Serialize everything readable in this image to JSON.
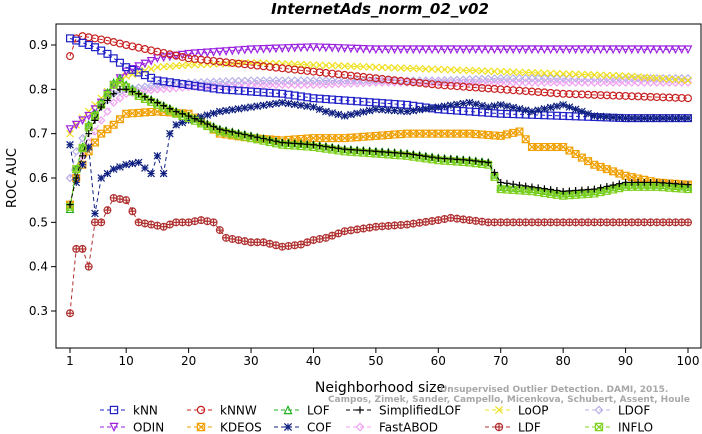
{
  "chart_data": {
    "type": "line",
    "title": "InternetAds_norm_02_v02",
    "xlabel": "Neighborhood size",
    "ylabel": "ROC AUC",
    "xlim": [
      1,
      100
    ],
    "ylim": [
      0.28,
      0.93
    ],
    "x_ticks": [
      1,
      10,
      20,
      30,
      40,
      50,
      60,
      70,
      80,
      90,
      100
    ],
    "y_ticks": [
      0.3,
      0.4,
      0.5,
      0.6,
      0.7,
      0.8,
      0.9
    ],
    "grid": false,
    "legend_placement": "bottom",
    "series": [
      {
        "name": "kNN",
        "color": "#2020c8",
        "marker": "square",
        "dashed": true,
        "x": [
          1,
          2,
          3,
          5,
          7,
          10,
          15,
          20,
          25,
          30,
          35,
          40,
          45,
          50,
          55,
          60,
          65,
          70,
          80,
          90,
          100
        ],
        "y": [
          0.915,
          0.91,
          0.905,
          0.895,
          0.88,
          0.85,
          0.82,
          0.81,
          0.8,
          0.795,
          0.79,
          0.78,
          0.775,
          0.77,
          0.765,
          0.755,
          0.75,
          0.745,
          0.74,
          0.735,
          0.735
        ]
      },
      {
        "name": "kNNW",
        "color": "#c82020",
        "marker": "circle",
        "dashed": true,
        "x": [
          1,
          2,
          3,
          5,
          7,
          10,
          15,
          20,
          30,
          40,
          50,
          60,
          70,
          80,
          90,
          100
        ],
        "y": [
          0.875,
          0.915,
          0.92,
          0.915,
          0.91,
          0.9,
          0.885,
          0.87,
          0.855,
          0.84,
          0.825,
          0.81,
          0.8,
          0.79,
          0.785,
          0.78
        ]
      },
      {
        "name": "LOF",
        "color": "#20b020",
        "marker": "triangle",
        "dashed": true,
        "x": [
          1,
          2,
          4,
          6,
          8,
          9,
          10,
          12,
          15,
          18,
          20,
          25,
          30,
          35,
          40,
          45,
          50,
          55,
          60,
          65,
          68,
          70,
          75,
          80,
          85,
          90,
          95,
          100
        ],
        "y": [
          0.53,
          0.62,
          0.72,
          0.77,
          0.815,
          0.825,
          0.81,
          0.79,
          0.77,
          0.75,
          0.74,
          0.71,
          0.695,
          0.68,
          0.675,
          0.665,
          0.66,
          0.655,
          0.645,
          0.64,
          0.635,
          0.58,
          0.575,
          0.565,
          0.57,
          0.585,
          0.585,
          0.58
        ]
      },
      {
        "name": "SimplifiedLOF",
        "color": "#000000",
        "marker": "plus",
        "dashed": true,
        "x": [
          1,
          2,
          4,
          6,
          8,
          9,
          10,
          12,
          15,
          18,
          20,
          25,
          30,
          35,
          40,
          45,
          50,
          55,
          60,
          65,
          68,
          70,
          75,
          80,
          85,
          90,
          95,
          100
        ],
        "y": [
          0.54,
          0.6,
          0.7,
          0.76,
          0.79,
          0.8,
          0.8,
          0.79,
          0.77,
          0.75,
          0.74,
          0.71,
          0.695,
          0.68,
          0.675,
          0.665,
          0.66,
          0.655,
          0.645,
          0.64,
          0.635,
          0.59,
          0.58,
          0.57,
          0.575,
          0.59,
          0.59,
          0.585
        ]
      },
      {
        "name": "LoOP",
        "color": "#f0e020",
        "marker": "cross",
        "dashed": true,
        "x": [
          1,
          2,
          4,
          6,
          8,
          10,
          15,
          20,
          30,
          40,
          50,
          60,
          70,
          80,
          90,
          100
        ],
        "y": [
          0.7,
          0.72,
          0.75,
          0.78,
          0.81,
          0.83,
          0.85,
          0.855,
          0.86,
          0.855,
          0.85,
          0.845,
          0.84,
          0.835,
          0.83,
          0.82
        ]
      },
      {
        "name": "LDOF",
        "color": "#b8b0e8",
        "marker": "diamond",
        "dashed": true,
        "x": [
          1,
          2,
          4,
          6,
          8,
          10,
          15,
          20,
          30,
          40,
          50,
          60,
          70,
          80,
          90,
          100
        ],
        "y": [
          0.6,
          0.66,
          0.72,
          0.76,
          0.79,
          0.8,
          0.81,
          0.815,
          0.82,
          0.82,
          0.82,
          0.82,
          0.825,
          0.825,
          0.825,
          0.825
        ]
      },
      {
        "name": "ODIN",
        "color": "#9a20e0",
        "marker": "triangle-down",
        "dashed": true,
        "x": [
          1,
          2,
          4,
          6,
          8,
          10,
          15,
          20,
          25,
          30,
          40,
          50,
          60,
          70,
          80,
          90,
          100
        ],
        "y": [
          0.71,
          0.72,
          0.74,
          0.77,
          0.81,
          0.84,
          0.87,
          0.88,
          0.885,
          0.89,
          0.895,
          0.89,
          0.89,
          0.89,
          0.89,
          0.89,
          0.89
        ]
      },
      {
        "name": "KDEOS",
        "color": "#f0a000",
        "marker": "square-x",
        "dashed": true,
        "x": [
          1,
          2,
          4,
          6,
          8,
          10,
          15,
          20,
          25,
          30,
          35,
          40,
          45,
          50,
          55,
          60,
          65,
          70,
          73,
          75,
          80,
          85,
          90,
          95,
          100
        ],
        "y": [
          0.54,
          0.6,
          0.66,
          0.7,
          0.72,
          0.745,
          0.75,
          0.745,
          0.7,
          0.69,
          0.685,
          0.69,
          0.69,
          0.695,
          0.7,
          0.7,
          0.7,
          0.695,
          0.705,
          0.67,
          0.67,
          0.63,
          0.605,
          0.59,
          0.585
        ]
      },
      {
        "name": "COF",
        "color": "#102080",
        "marker": "star",
        "dashed": true,
        "x": [
          1,
          2,
          3,
          4,
          5,
          6,
          8,
          10,
          12,
          14,
          15,
          16,
          17,
          18,
          20,
          25,
          30,
          35,
          40,
          42,
          45,
          50,
          55,
          60,
          65,
          68,
          70,
          75,
          80,
          85,
          90,
          100
        ],
        "y": [
          0.675,
          0.59,
          0.63,
          0.67,
          0.52,
          0.6,
          0.62,
          0.63,
          0.635,
          0.61,
          0.65,
          0.61,
          0.7,
          0.72,
          0.73,
          0.75,
          0.76,
          0.77,
          0.76,
          0.75,
          0.74,
          0.755,
          0.75,
          0.76,
          0.77,
          0.76,
          0.765,
          0.75,
          0.765,
          0.74,
          0.735,
          0.735
        ]
      },
      {
        "name": "FastABOD",
        "color": "#f0a0f0",
        "marker": "diamond",
        "dashed": true,
        "x": [
          1,
          2,
          4,
          6,
          8,
          10,
          15,
          20,
          30,
          40,
          50,
          60,
          70,
          80,
          90,
          100
        ],
        "y": [
          0.6,
          0.62,
          0.68,
          0.73,
          0.77,
          0.79,
          0.8,
          0.805,
          0.81,
          0.81,
          0.815,
          0.815,
          0.815,
          0.815,
          0.815,
          0.815
        ]
      },
      {
        "name": "LDF",
        "color": "#b03030",
        "marker": "circle-plus",
        "dashed": true,
        "x": [
          1,
          2,
          3,
          4,
          5,
          6,
          8,
          10,
          12,
          14,
          16,
          18,
          20,
          22,
          24,
          26,
          28,
          30,
          32,
          35,
          38,
          40,
          42,
          45,
          50,
          55,
          60,
          62,
          65,
          68,
          70,
          75,
          80,
          85,
          90,
          95,
          100
        ],
        "y": [
          0.295,
          0.44,
          0.44,
          0.4,
          0.5,
          0.5,
          0.555,
          0.55,
          0.5,
          0.495,
          0.49,
          0.5,
          0.5,
          0.505,
          0.5,
          0.465,
          0.46,
          0.455,
          0.455,
          0.445,
          0.45,
          0.46,
          0.465,
          0.48,
          0.49,
          0.495,
          0.505,
          0.51,
          0.505,
          0.5,
          0.5,
          0.5,
          0.5,
          0.5,
          0.5,
          0.5,
          0.5
        ]
      },
      {
        "name": "INFLO",
        "color": "#80d020",
        "marker": "square-x",
        "dashed": true,
        "x": [
          1,
          2,
          4,
          6,
          8,
          9,
          10,
          12,
          15,
          18,
          20,
          25,
          30,
          35,
          40,
          45,
          50,
          55,
          60,
          65,
          68,
          70,
          75,
          80,
          85,
          90,
          95,
          100
        ],
        "y": [
          0.535,
          0.62,
          0.715,
          0.765,
          0.81,
          0.815,
          0.805,
          0.785,
          0.765,
          0.745,
          0.735,
          0.705,
          0.69,
          0.675,
          0.67,
          0.66,
          0.655,
          0.65,
          0.64,
          0.635,
          0.63,
          0.575,
          0.57,
          0.56,
          0.565,
          0.58,
          0.58,
          0.575
        ]
      }
    ]
  },
  "watermark": {
    "line1": "Unsupervised Outlier Detection. DAMI, 2015.",
    "line2": "Campos, Zimek, Sander, Campello, Micenkova, Schubert, Assent, Houle"
  }
}
